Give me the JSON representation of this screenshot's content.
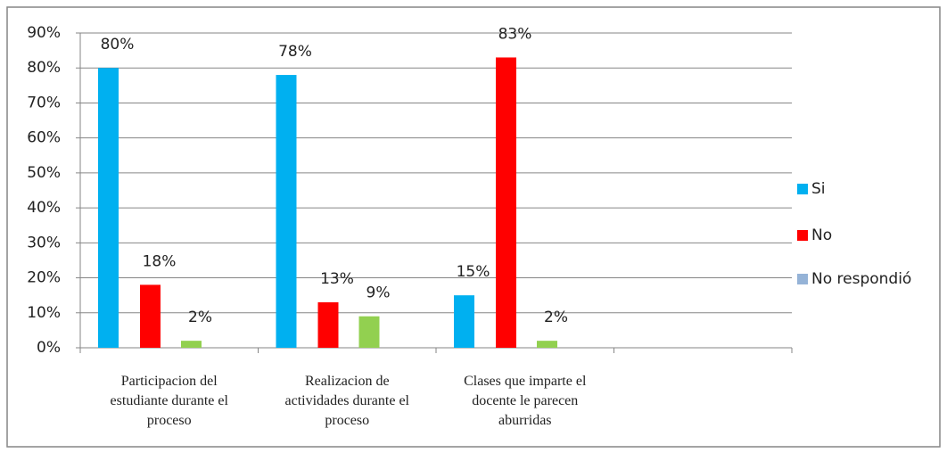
{
  "chart_data": {
    "type": "bar",
    "categories": [
      "Participacion del estudiante durante el proceso",
      "Realizacion de actividades durante el proceso",
      "Clases que imparte el docente le parecen aburridas",
      null
    ],
    "series": [
      {
        "name": "Si",
        "color": "#00b0f0",
        "values": [
          80,
          78,
          15,
          null
        ],
        "value_labels": [
          "80%",
          "78%",
          "15%",
          null
        ]
      },
      {
        "name": "No",
        "color": "#ff0000",
        "values": [
          18,
          13,
          83,
          null
        ],
        "value_labels": [
          "18%",
          "13%",
          "83%",
          null
        ]
      },
      {
        "name": "No respondió",
        "color": "#92d050",
        "legend_color": "#95b3d7",
        "values": [
          2,
          9,
          2,
          null
        ],
        "value_labels": [
          "2%",
          "9%",
          "2%",
          null
        ]
      }
    ],
    "ylim": [
      0,
      90
    ],
    "yticks": [
      {
        "value": 0,
        "label": "0%"
      },
      {
        "value": 10,
        "label": "10%"
      },
      {
        "value": 20,
        "label": "20%"
      },
      {
        "value": 30,
        "label": "30%"
      },
      {
        "value": 40,
        "label": "40%"
      },
      {
        "value": 50,
        "label": "50%"
      },
      {
        "value": 60,
        "label": "60%"
      },
      {
        "value": 70,
        "label": "70%"
      },
      {
        "value": 80,
        "label": "80%"
      },
      {
        "value": 90,
        "label": "90%"
      }
    ],
    "grid": true,
    "legend": "right"
  }
}
